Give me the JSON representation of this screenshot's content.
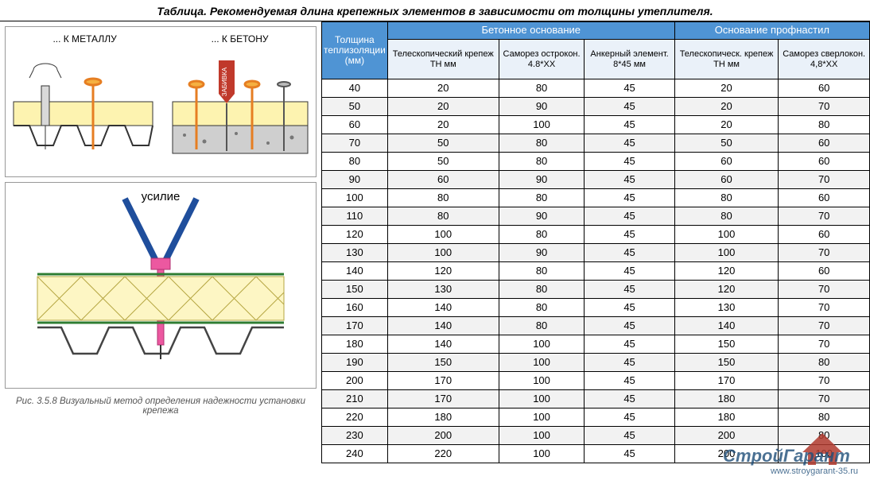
{
  "title": "Таблица. Рекомендуемая длина крепежных элементов в зависимости от толщины утеплителя.",
  "diagram1": {
    "label_metal": "... К МЕТАЛЛУ",
    "label_concrete": "... К БЕТОНУ",
    "hammer_label": "ЗАБИВКА"
  },
  "diagram2": {
    "force_label": "усилие"
  },
  "fig_caption": "Рис. 3.5.8 Визуальный метод определения надежности установки крепежа",
  "table": {
    "col_thickness": "Толщина теплизоляции (мм)",
    "group_concrete": "Бетонное основание",
    "group_profnastil": "Основание профнастил",
    "sub_headers": [
      "Телескопический крепеж ТН мм",
      "Саморез острокон. 4.8*XX",
      "Анкерный элемент. 8*45 мм",
      "Телескопическ. крепеж ТН мм",
      "Саморез сверлокон. 4,8*XX"
    ],
    "rows": [
      [
        40,
        20,
        80,
        45,
        20,
        60
      ],
      [
        50,
        20,
        90,
        45,
        20,
        70
      ],
      [
        60,
        20,
        100,
        45,
        20,
        80
      ],
      [
        70,
        50,
        80,
        45,
        50,
        60
      ],
      [
        80,
        50,
        80,
        45,
        60,
        60
      ],
      [
        90,
        60,
        90,
        45,
        60,
        70
      ],
      [
        100,
        80,
        80,
        45,
        80,
        60
      ],
      [
        110,
        80,
        90,
        45,
        80,
        70
      ],
      [
        120,
        100,
        80,
        45,
        100,
        60
      ],
      [
        130,
        100,
        90,
        45,
        100,
        70
      ],
      [
        140,
        120,
        80,
        45,
        120,
        60
      ],
      [
        150,
        130,
        80,
        45,
        120,
        70
      ],
      [
        160,
        140,
        80,
        45,
        130,
        70
      ],
      [
        170,
        140,
        80,
        45,
        140,
        70
      ],
      [
        180,
        140,
        100,
        45,
        150,
        70
      ],
      [
        190,
        150,
        100,
        45,
        150,
        80
      ],
      [
        200,
        170,
        100,
        45,
        170,
        70
      ],
      [
        210,
        170,
        100,
        45,
        180,
        70
      ],
      [
        220,
        180,
        100,
        45,
        180,
        80
      ],
      [
        230,
        200,
        100,
        45,
        200,
        80
      ],
      [
        240,
        220,
        100,
        45,
        200,
        100
      ]
    ],
    "colors": {
      "header_bg": "#4f94d4",
      "header_fg": "#ffffff",
      "sub_bg": "#eaf1f9",
      "alt_row_bg": "#f2f2f2",
      "border": "#000000"
    }
  },
  "watermark": {
    "brand": "СтройГарант",
    "url": "www.stroygarant-35.ru",
    "roof_color": "#b03a2e",
    "text_color": "#1f4e79"
  }
}
